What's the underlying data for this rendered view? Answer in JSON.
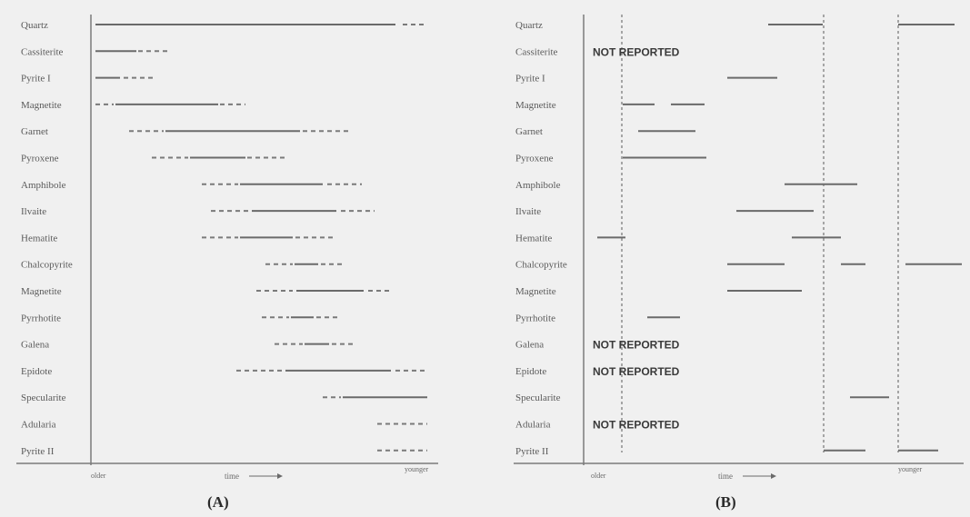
{
  "panels": [
    {
      "id": "A",
      "label": "(A)",
      "minerals": [
        "Quartz",
        "Cassiterite",
        "Pyrite I",
        "Magnetite",
        "Garnet",
        "Pyroxene",
        "Amphibole",
        "Ilvaite",
        "Hematite",
        "Chalcopyrite",
        "Magnetite",
        "Pyrrhotite",
        "Galena",
        "Epidote",
        "Specularite",
        "Adularia",
        "Pyrite II"
      ],
      "axis": {
        "older": "older",
        "time": "time",
        "younger": "younger"
      },
      "not_reported": []
    },
    {
      "id": "B",
      "label": "(B)",
      "minerals": [
        "Quartz",
        "Cassiterite",
        "Pyrite I",
        "Magnetite",
        "Garnet",
        "Pyroxene",
        "Amphibole",
        "Ilvaite",
        "Hematite",
        "Chalcopyrite",
        "Magnetite",
        "Pyrrhotite",
        "Galena",
        "Epidote",
        "Specularite",
        "Adularia",
        "Pyrite II"
      ],
      "axis": {
        "older": "older",
        "time": "time",
        "younger": "younger"
      },
      "not_reported_text": "NOT REPORTED",
      "not_reported": [
        1,
        12,
        13,
        15
      ]
    }
  ],
  "colors": {
    "background": "#f0f0f0",
    "lines": "#6a6a6a"
  }
}
